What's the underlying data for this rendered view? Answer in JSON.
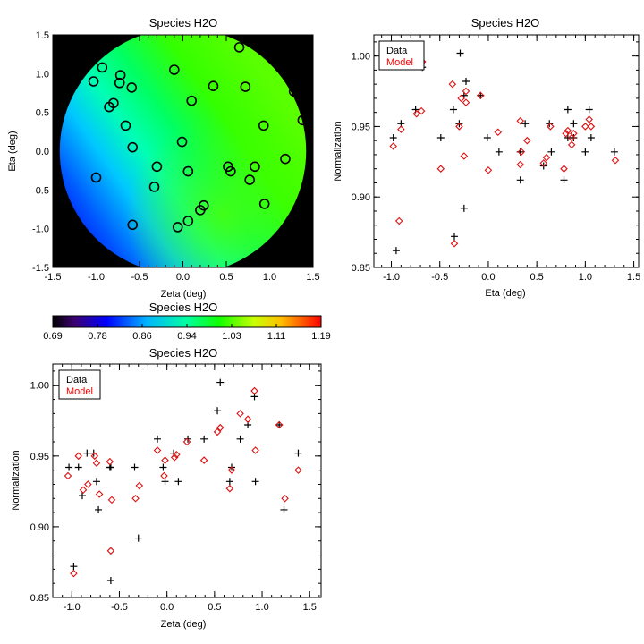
{
  "chart_data": [
    {
      "type": "heatmap",
      "title": "Species H2O",
      "xlabel": "Zeta (deg)",
      "ylabel": "Eta (deg)",
      "xlim": [
        -1.5,
        1.5
      ],
      "ylim": [
        -1.5,
        1.5
      ],
      "xticks": [
        "-1.5",
        "-1.0",
        "-0.5",
        "0.0",
        "0.5",
        "1.0",
        "1.5"
      ],
      "yticks": [
        "-1.5",
        "-1.0",
        "-0.5",
        "0.0",
        "0.5",
        "1.0",
        "1.5"
      ],
      "circles": [
        {
          "x": -1.03,
          "y": 0.9
        },
        {
          "x": -0.93,
          "y": 1.08
        },
        {
          "x": -0.85,
          "y": 0.57
        },
        {
          "x": -0.8,
          "y": 0.62
        },
        {
          "x": -0.72,
          "y": 0.98
        },
        {
          "x": -0.73,
          "y": 0.88
        },
        {
          "x": -0.59,
          "y": 0.82
        },
        {
          "x": -0.66,
          "y": 0.33
        },
        {
          "x": -0.58,
          "y": 0.05
        },
        {
          "x": -0.1,
          "y": 1.05
        },
        {
          "x": 0.1,
          "y": 0.65
        },
        {
          "x": 0.35,
          "y": 0.84
        },
        {
          "x": 0.65,
          "y": 1.34
        },
        {
          "x": 0.72,
          "y": 0.83
        },
        {
          "x": 0.93,
          "y": 0.33
        },
        {
          "x": 1.28,
          "y": 0.77
        },
        {
          "x": 1.38,
          "y": 0.4
        },
        {
          "x": -0.01,
          "y": 0.12
        },
        {
          "x": 0.06,
          "y": -0.26
        },
        {
          "x": -0.3,
          "y": -0.2
        },
        {
          "x": -0.33,
          "y": -0.46
        },
        {
          "x": 0.52,
          "y": -0.2
        },
        {
          "x": 0.55,
          "y": -0.26
        },
        {
          "x": 0.77,
          "y": -0.37
        },
        {
          "x": 0.83,
          "y": -0.2
        },
        {
          "x": 1.18,
          "y": -0.1
        },
        {
          "x": 0.94,
          "y": -0.68
        },
        {
          "x": 0.24,
          "y": -0.7
        },
        {
          "x": 0.2,
          "y": -0.76
        },
        {
          "x": 0.06,
          "y": -0.9
        },
        {
          "x": -0.06,
          "y": -0.98
        },
        {
          "x": -0.58,
          "y": -0.95
        },
        {
          "x": -1.0,
          "y": -0.34
        }
      ]
    },
    {
      "type": "colorbar",
      "title": "Species H2O",
      "ticks": [
        "0.69",
        "0.78",
        "0.86",
        "0.94",
        "1.03",
        "1.11",
        "1.19"
      ],
      "range": [
        0.69,
        1.19
      ]
    },
    {
      "type": "scatter",
      "title": "Species H2O",
      "xlabel": "Eta (deg)",
      "ylabel": "Normalization",
      "xlim": [
        -1.18,
        1.55
      ],
      "ylim": [
        0.85,
        1.015
      ],
      "xticks": [
        "-1.0",
        "-0.5",
        "0.0",
        "0.5",
        "1.0",
        "1.5"
      ],
      "yticks": [
        "0.85",
        "0.90",
        "0.95",
        "1.00"
      ],
      "legend": {
        "position": "top-left",
        "entries": [
          {
            "name": "Data",
            "color": "#000000"
          },
          {
            "name": "Model",
            "color": "#ff0000"
          }
        ]
      },
      "series": [
        {
          "name": "Data",
          "marker": "plus",
          "color": "#000000",
          "points": [
            [
              -0.95,
              0.862
            ],
            [
              -0.98,
              0.942
            ],
            [
              -0.9,
              0.952
            ],
            [
              -0.75,
              0.962
            ],
            [
              -0.68,
              0.992
            ],
            [
              -0.49,
              0.942
            ],
            [
              -0.36,
              0.962
            ],
            [
              -0.35,
              0.872
            ],
            [
              -0.3,
              0.952
            ],
            [
              -0.29,
              1.002
            ],
            [
              -0.23,
              0.982
            ],
            [
              -0.25,
              0.892
            ],
            [
              -0.25,
              0.972
            ],
            [
              -0.08,
              0.972
            ],
            [
              -0.01,
              0.942
            ],
            [
              0.11,
              0.932
            ],
            [
              0.33,
              0.912
            ],
            [
              0.33,
              0.932
            ],
            [
              0.38,
              0.952
            ],
            [
              0.57,
              0.922
            ],
            [
              0.63,
              0.952
            ],
            [
              0.65,
              0.932
            ],
            [
              0.78,
              0.912
            ],
            [
              0.82,
              0.962
            ],
            [
              0.82,
              0.942
            ],
            [
              0.88,
              0.952
            ],
            [
              0.88,
              0.942
            ],
            [
              1.0,
              0.932
            ],
            [
              1.04,
              0.962
            ],
            [
              1.06,
              0.942
            ],
            [
              1.3,
              0.932
            ]
          ]
        },
        {
          "name": "Model",
          "marker": "diamond",
          "color": "#e01010",
          "points": [
            [
              -0.92,
              0.883
            ],
            [
              -0.98,
              0.936
            ],
            [
              -0.9,
              0.948
            ],
            [
              -0.74,
              0.959
            ],
            [
              -0.69,
              0.961
            ],
            [
              -0.68,
              0.996
            ],
            [
              -0.49,
              0.92
            ],
            [
              -0.37,
              0.98
            ],
            [
              -0.35,
              0.867
            ],
            [
              -0.3,
              0.95
            ],
            [
              -0.28,
              0.97
            ],
            [
              -0.23,
              0.975
            ],
            [
              -0.23,
              0.967
            ],
            [
              -0.25,
              0.929
            ],
            [
              -0.08,
              0.972
            ],
            [
              0.0,
              0.919
            ],
            [
              0.1,
              0.946
            ],
            [
              0.33,
              0.954
            ],
            [
              0.33,
              0.923
            ],
            [
              0.34,
              0.932
            ],
            [
              0.4,
              0.94
            ],
            [
              0.57,
              0.924
            ],
            [
              0.6,
              0.928
            ],
            [
              0.64,
              0.95
            ],
            [
              0.78,
              0.92
            ],
            [
              0.8,
              0.945
            ],
            [
              0.82,
              0.947
            ],
            [
              0.86,
              0.942
            ],
            [
              0.86,
              0.937
            ],
            [
              0.88,
              0.945
            ],
            [
              1.0,
              0.95
            ],
            [
              1.04,
              0.955
            ],
            [
              1.06,
              0.95
            ],
            [
              1.31,
              0.926
            ]
          ]
        }
      ]
    },
    {
      "type": "scatter",
      "title": "Species H2O",
      "xlabel": "Zeta (deg)",
      "ylabel": "Normalization",
      "xlim": [
        -1.2,
        1.62
      ],
      "ylim": [
        0.85,
        1.015
      ],
      "xticks": [
        "-1.0",
        "-0.5",
        "0.0",
        "0.5",
        "1.0",
        "1.5"
      ],
      "yticks": [
        "0.85",
        "0.90",
        "0.95",
        "1.00"
      ],
      "legend": {
        "position": "top-left",
        "entries": [
          {
            "name": "Data",
            "color": "#000000"
          },
          {
            "name": "Model",
            "color": "#ff0000"
          }
        ]
      },
      "series": [
        {
          "name": "Data",
          "marker": "plus",
          "color": "#000000",
          "points": [
            [
              -1.03,
              0.942
            ],
            [
              -0.98,
              0.872
            ],
            [
              -0.93,
              0.942
            ],
            [
              -0.89,
              0.922
            ],
            [
              -0.84,
              0.952
            ],
            [
              -0.77,
              0.952
            ],
            [
              -0.74,
              0.932
            ],
            [
              -0.72,
              0.912
            ],
            [
              -0.6,
              0.942
            ],
            [
              -0.59,
              0.862
            ],
            [
              -0.59,
              0.942
            ],
            [
              -0.34,
              0.942
            ],
            [
              -0.3,
              0.892
            ],
            [
              -0.1,
              0.962
            ],
            [
              -0.04,
              0.942
            ],
            [
              -0.02,
              0.932
            ],
            [
              0.07,
              0.952
            ],
            [
              0.12,
              0.932
            ],
            [
              0.22,
              0.962
            ],
            [
              0.39,
              0.962
            ],
            [
              0.53,
              0.982
            ],
            [
              0.56,
              1.002
            ],
            [
              0.66,
              0.932
            ],
            [
              0.68,
              0.942
            ],
            [
              0.77,
              0.962
            ],
            [
              0.85,
              0.972
            ],
            [
              0.92,
              0.992
            ],
            [
              0.93,
              0.932
            ],
            [
              1.18,
              0.972
            ],
            [
              1.23,
              0.912
            ],
            [
              1.38,
              0.952
            ]
          ]
        },
        {
          "name": "Model",
          "marker": "diamond",
          "color": "#e01010",
          "points": [
            [
              -1.04,
              0.936
            ],
            [
              -0.98,
              0.867
            ],
            [
              -0.93,
              0.95
            ],
            [
              -0.88,
              0.926
            ],
            [
              -0.83,
              0.93
            ],
            [
              -0.76,
              0.95
            ],
            [
              -0.74,
              0.945
            ],
            [
              -0.71,
              0.923
            ],
            [
              -0.6,
              0.946
            ],
            [
              -0.59,
              0.883
            ],
            [
              -0.58,
              0.919
            ],
            [
              -0.33,
              0.92
            ],
            [
              -0.29,
              0.929
            ],
            [
              -0.1,
              0.954
            ],
            [
              -0.03,
              0.936
            ],
            [
              -0.02,
              0.947
            ],
            [
              0.08,
              0.949
            ],
            [
              0.1,
              0.951
            ],
            [
              0.21,
              0.96
            ],
            [
              0.39,
              0.947
            ],
            [
              0.53,
              0.967
            ],
            [
              0.56,
              0.97
            ],
            [
              0.66,
              0.927
            ],
            [
              0.68,
              0.94
            ],
            [
              0.77,
              0.98
            ],
            [
              0.85,
              0.976
            ],
            [
              0.92,
              0.996
            ],
            [
              0.93,
              0.954
            ],
            [
              1.18,
              0.972
            ],
            [
              1.24,
              0.92
            ],
            [
              1.38,
              0.94
            ]
          ]
        }
      ]
    }
  ]
}
